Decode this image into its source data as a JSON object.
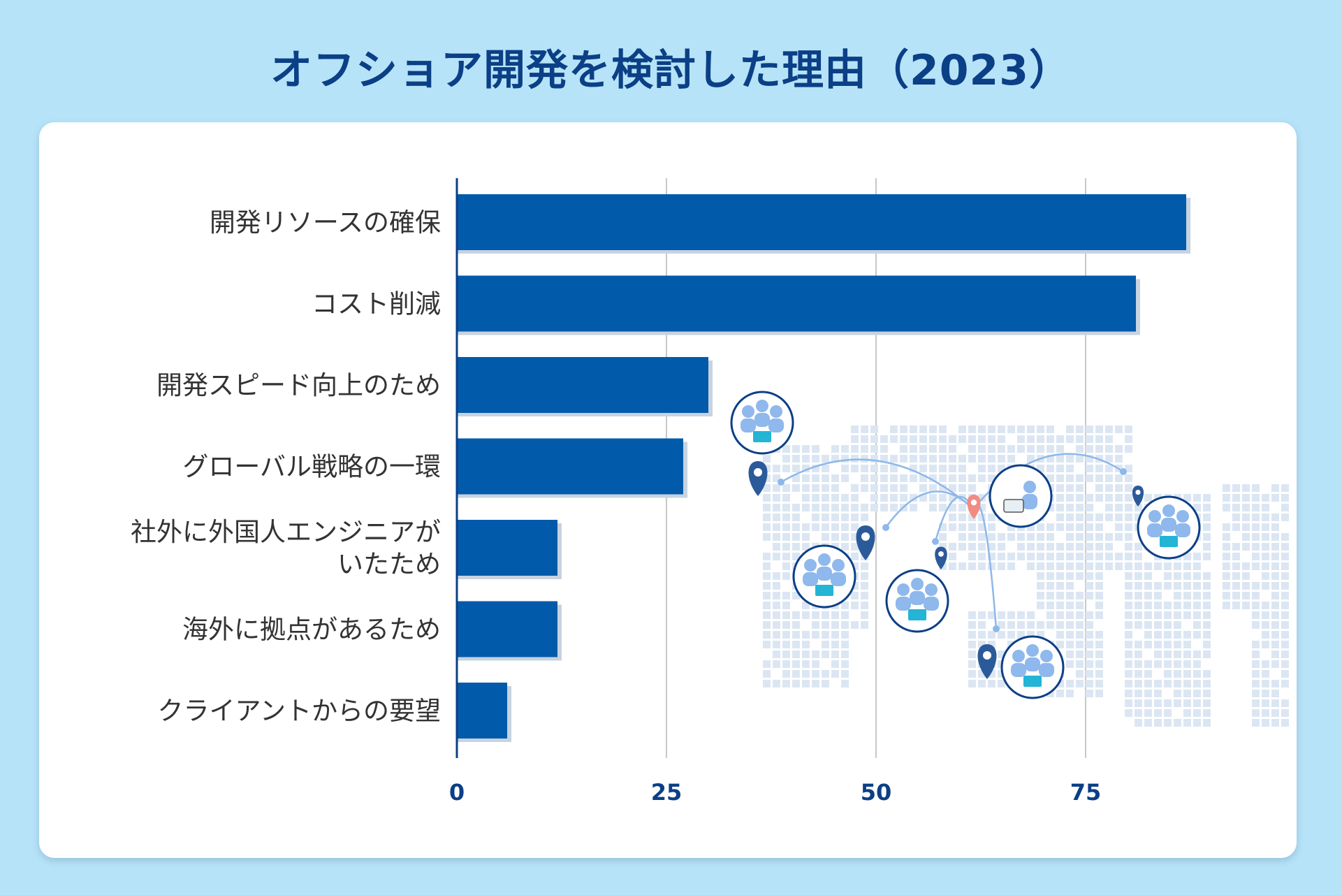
{
  "title": "オフショア開発を検討した理由（2023）",
  "colors": {
    "bar": "#025aab",
    "bar_shadow": "#c7d3e0",
    "axis": "#0b3f86",
    "grid": "#c8c8c8",
    "map_dot": "#dce6f3",
    "pin": "#2b5a9a",
    "pin_origin": "#f28b82",
    "people": "#8fb8ec",
    "screen": "#23b4d6"
  },
  "chart_data": {
    "type": "bar",
    "orientation": "horizontal",
    "title": "オフショア開発を検討した理由（2023）",
    "categories": [
      [
        "開発リソースの確保"
      ],
      [
        "コスト削減"
      ],
      [
        "開発スピード向上のため"
      ],
      [
        "グローバル戦略の一環"
      ],
      [
        "社外に外国人エンジニアが",
        "いたため"
      ],
      [
        "海外に拠点があるため"
      ],
      [
        "クライアントからの要望"
      ]
    ],
    "values": [
      87,
      81,
      30,
      27,
      12,
      12,
      6
    ],
    "xlim": [
      0,
      90
    ],
    "xticks": [
      "0",
      "25",
      "50",
      "75"
    ],
    "xtick_values": [
      0,
      25,
      50,
      75
    ],
    "grid": true,
    "legend": "none"
  }
}
